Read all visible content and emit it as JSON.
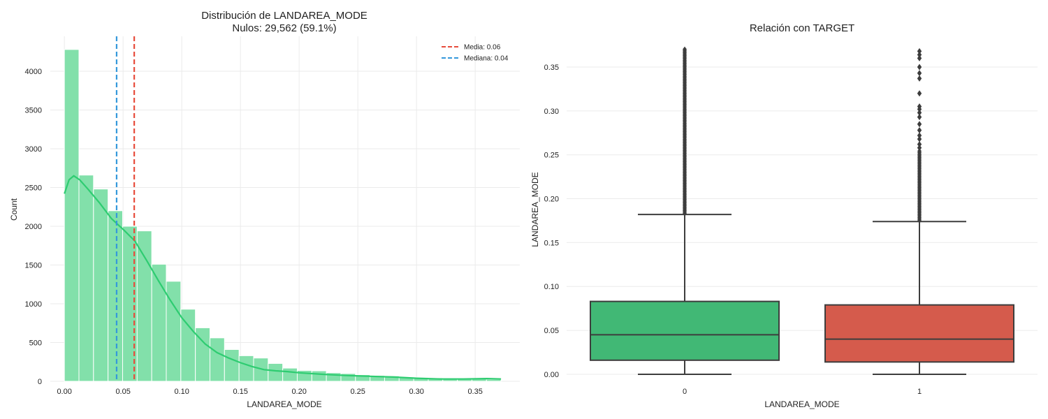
{
  "chart_data": [
    {
      "type": "bar",
      "title": "Distribución de LANDAREA_MODE",
      "subtitle": "Nulos: 29,562 (59.1%)",
      "xlabel": "LANDAREA_MODE",
      "ylabel": "Count",
      "xlim": [
        -0.012,
        0.388
      ],
      "ylim": [
        0,
        4450
      ],
      "xticks": [
        0.0,
        0.05,
        0.1,
        0.15,
        0.2,
        0.25,
        0.3,
        0.35
      ],
      "xtick_labels": [
        "0.00",
        "0.05",
        "0.10",
        "0.15",
        "0.20",
        "0.25",
        "0.30",
        "0.35"
      ],
      "yticks": [
        0,
        500,
        1000,
        1500,
        2000,
        2500,
        3000,
        3500,
        4000
      ],
      "yticks_labels": [
        "0",
        "500",
        "1000",
        "1500",
        "2000",
        "2500",
        "3000",
        "3500",
        "4000"
      ],
      "grid": true,
      "bar_color": "#82e0aa",
      "bin_width": 0.0124,
      "bin_edges_start": 0.0,
      "counts": [
        4280,
        2660,
        2480,
        2200,
        2000,
        1940,
        1510,
        1290,
        930,
        690,
        560,
        410,
        330,
        300,
        230,
        170,
        140,
        135,
        110,
        100,
        85,
        75,
        70,
        55,
        50,
        45,
        40,
        35,
        30,
        25
      ],
      "kde": {
        "name": "KDE",
        "color": "#2ecc71",
        "x": [
          0.0,
          0.004,
          0.008,
          0.013,
          0.02,
          0.03,
          0.04,
          0.05,
          0.06,
          0.07,
          0.08,
          0.09,
          0.1,
          0.11,
          0.12,
          0.13,
          0.14,
          0.15,
          0.16,
          0.17,
          0.18,
          0.19,
          0.2,
          0.22,
          0.24,
          0.26,
          0.28,
          0.3,
          0.32,
          0.34,
          0.36,
          0.372
        ],
        "y": [
          2420,
          2600,
          2650,
          2600,
          2480,
          2300,
          2100,
          1960,
          1810,
          1560,
          1300,
          1050,
          820,
          640,
          480,
          370,
          300,
          240,
          190,
          150,
          135,
          125,
          110,
          90,
          75,
          65,
          55,
          40,
          30,
          30,
          35,
          30
        ]
      },
      "vlines": [
        {
          "name": "Media: 0.06",
          "x": 0.0595,
          "color": "#e74c3c"
        },
        {
          "name": "Mediana: 0.04",
          "x": 0.0445,
          "color": "#3498db"
        }
      ],
      "legend_position": "top-right"
    },
    {
      "type": "box",
      "title": "Relación con TARGET",
      "xlabel": "LANDAREA_MODE",
      "ylabel": "LANDAREA_MODE",
      "ylim": [
        -0.008,
        0.385
      ],
      "yticks": [
        0.0,
        0.05,
        0.1,
        0.15,
        0.2,
        0.25,
        0.3,
        0.35
      ],
      "ytick_labels": [
        "0.00",
        "0.05",
        "0.10",
        "0.15",
        "0.20",
        "0.25",
        "0.30",
        "0.35"
      ],
      "categories": [
        "0",
        "1"
      ],
      "grid": true,
      "boxes": [
        {
          "category": "0",
          "color": "#41b875",
          "min": 0.0,
          "q1": 0.016,
          "median": 0.045,
          "q3": 0.083,
          "whisker_high": 0.182,
          "outliers_dense_range": [
            0.183,
            0.372
          ]
        },
        {
          "category": "1",
          "color": "#d55b4c",
          "min": 0.0,
          "q1": 0.014,
          "median": 0.04,
          "q3": 0.079,
          "whisker_high": 0.174,
          "outliers_dense_range": [
            0.175,
            0.255
          ],
          "outliers": [
            0.258,
            0.262,
            0.268,
            0.272,
            0.278,
            0.285,
            0.293,
            0.298,
            0.302,
            0.305,
            0.32,
            0.337,
            0.343,
            0.35,
            0.36,
            0.364,
            0.368
          ]
        }
      ]
    }
  ]
}
